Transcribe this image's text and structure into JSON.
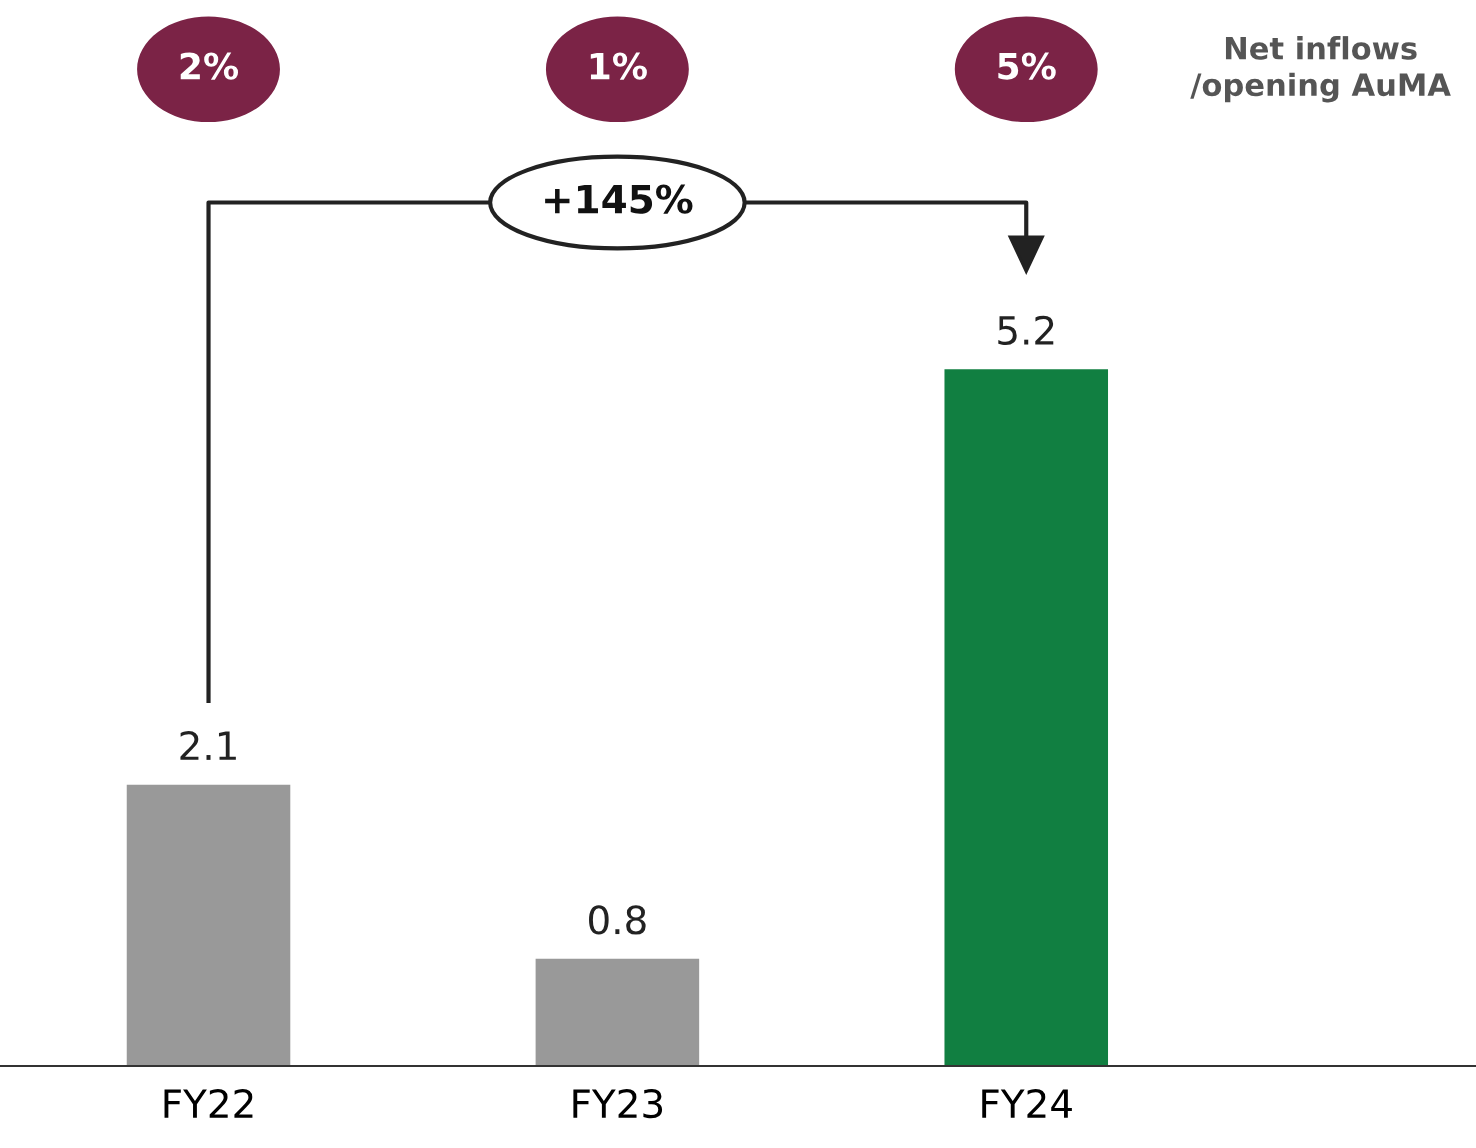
{
  "chart_data": {
    "type": "bar",
    "categories": [
      "FY22",
      "FY23",
      "FY24"
    ],
    "values": [
      2.1,
      0.8,
      5.2
    ],
    "colors": [
      "#999999",
      "#999999",
      "#117f41"
    ],
    "data_labels": true,
    "grid": false,
    "tick_labels": "x",
    "annotations": [
      "2%",
      "1%",
      "5%",
      "+145%",
      "Net inflows\n/opening AuMA"
    ]
  }
}
